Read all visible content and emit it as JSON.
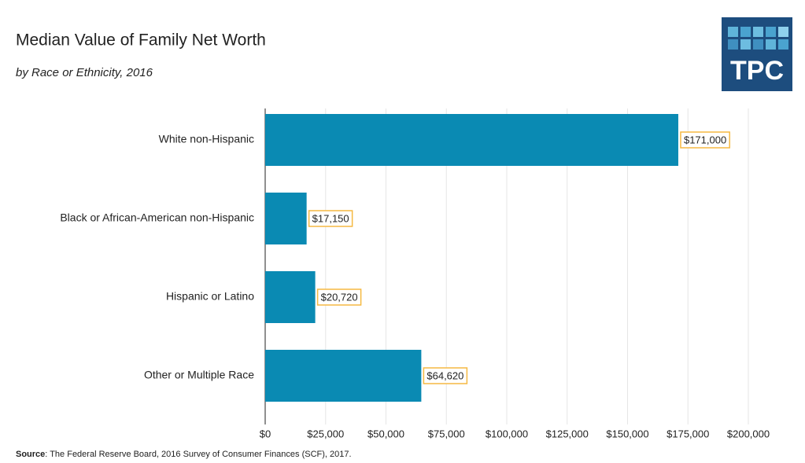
{
  "chart_data": {
    "type": "hbar",
    "title": "Median Value of Family Net Worth",
    "subtitle": "by Race or Ethnicity, 2016",
    "categories": [
      "White non-Hispanic",
      "Black or African-American non-Hispanic",
      "Hispanic or Latino",
      "Other or Multiple Race"
    ],
    "values": [
      171000,
      17150,
      20720,
      64620
    ],
    "value_labels": [
      "$171,000",
      "$17,150",
      "$20,720",
      "$64,620"
    ],
    "color": "#0a8ab3",
    "xlim": [
      0,
      200000
    ],
    "xticks": [
      {
        "value": 0,
        "label": "$0"
      },
      {
        "value": 25000,
        "label": "$25,000"
      },
      {
        "value": 50000,
        "label": "$50,000"
      },
      {
        "value": 75000,
        "label": "$75,000"
      },
      {
        "value": 100000,
        "label": "$100,000"
      },
      {
        "value": 125000,
        "label": "$125,000"
      },
      {
        "value": 150000,
        "label": "$150,000"
      },
      {
        "value": 175000,
        "label": "$175,000"
      },
      {
        "value": 200000,
        "label": "$200,000"
      }
    ],
    "grid": true,
    "source_label": "Source",
    "source_text": ": The Federal Reserve Board, 2016 Survey of Consumer Finances (SCF), 2017.",
    "logo": "TPC"
  }
}
